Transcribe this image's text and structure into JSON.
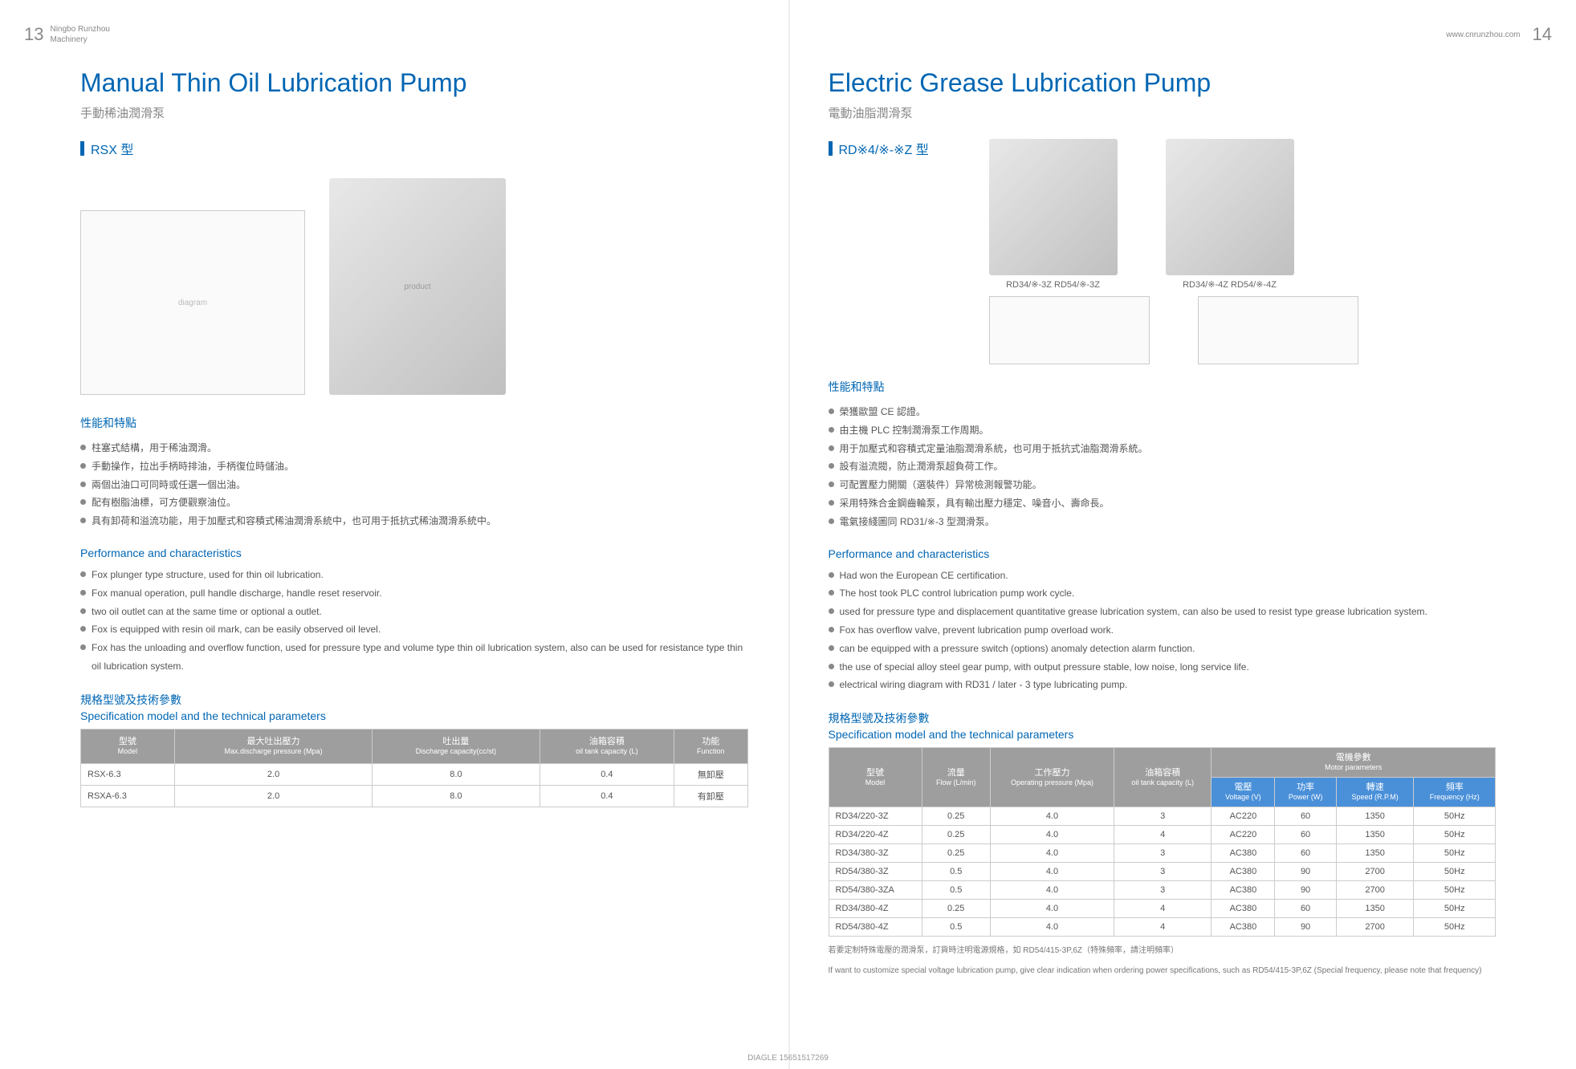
{
  "header": {
    "page_left": "13",
    "page_right": "14",
    "company_l1": "Ningbo Runzhou",
    "company_l2": "Machinery",
    "url": "www.cnrunzhou.com"
  },
  "left": {
    "title": "Manual Thin Oil Lubrication Pump",
    "subtitle": "手動稀油潤滑泵",
    "model": "RSX 型",
    "feat_cn_hdr": "性能和特點",
    "feat_cn": [
      "柱塞式結構，用于稀油潤滑。",
      "手動操作，拉出手柄時排油，手柄復位時儲油。",
      "兩個出油口可同時或任選一個出油。",
      "配有樹脂油標，可方便觀察油位。",
      "具有卸荷和溢流功能，用于加壓式和容積式稀油潤滑系統中，也可用于抵抗式稀油潤滑系統中。"
    ],
    "feat_en_hdr": "Performance and characteristics",
    "feat_en": [
      "Fox plunger type structure, used for thin oil lubrication.",
      "Fox manual operation, pull handle discharge, handle reset reservoir.",
      "two oil outlet can at the same time or optional a outlet.",
      "Fox is equipped with resin oil mark, can be easily observed oil level.",
      "Fox has the unloading and overflow function, used for pressure type and volume type thin oil lubrication system, also can be used for resistance type thin oil lubrication system."
    ],
    "spec_cn": "規格型號及技術參數",
    "spec_en": "Specification model and the technical parameters",
    "table": {
      "headers": [
        {
          "cn": "型號",
          "en": "Model"
        },
        {
          "cn": "最大吐出壓力",
          "en": "Max.discharge pressure (Mpa)"
        },
        {
          "cn": "吐出量",
          "en": "Discharge capacity(cc/st)"
        },
        {
          "cn": "油箱容積",
          "en": "oil tank capacity (L)"
        },
        {
          "cn": "功能",
          "en": "Function"
        }
      ],
      "rows": [
        [
          "RSX-6.3",
          "2.0",
          "8.0",
          "0.4",
          "無卸壓"
        ],
        [
          "RSXA-6.3",
          "2.0",
          "8.0",
          "0.4",
          "有卸壓"
        ]
      ]
    }
  },
  "right": {
    "title": "Electric Grease Lubrication Pump",
    "subtitle": "電動油脂潤滑泵",
    "model": "RD※4/※-※Z 型",
    "prod_labels": [
      "RD34/※-3Z   RD54/※-3Z",
      "RD34/※-4Z   RD54/※-4Z"
    ],
    "feat_cn_hdr": "性能和特點",
    "feat_cn": [
      "榮獲歐盟 CE 認證。",
      "由主機 PLC 控制潤滑泵工作周期。",
      "用于加壓式和容積式定量油脂潤滑系統，也可用于抵抗式油脂潤滑系統。",
      "設有溢流閥，防止潤滑泵超負荷工作。",
      "可配置壓力開關（選裝件）异常檢測報警功能。",
      "采用特殊合金鋼齒輪泵，具有輸出壓力穩定、噪音小、壽命長。",
      "電氣接綫圖同 RD31/※-3 型潤滑泵。"
    ],
    "feat_en_hdr": "Performance and characteristics",
    "feat_en": [
      "Had won the European CE certification.",
      "The host took PLC control lubrication pump work cycle.",
      "used for pressure type and displacement quantitative grease lubrication system, can also be used to resist type grease lubrication system.",
      "Fox has overflow valve, prevent lubrication pump overload work.",
      "can be equipped with a pressure switch (options) anomaly detection alarm function.",
      "the use of special alloy steel gear pump, with output pressure stable, low noise, long service life.",
      "electrical wiring diagram with RD31 / later - 3 type lubricating pump."
    ],
    "spec_cn": "規格型號及技術參數",
    "spec_en": "Specification model and the technical parameters",
    "table": {
      "top_headers": [
        {
          "cn": "型號",
          "en": "Model",
          "span": 1
        },
        {
          "cn": "流量",
          "en": "Flow (L/min)",
          "span": 1
        },
        {
          "cn": "工作壓力",
          "en": "Operating pressure (Mpa)",
          "span": 1
        },
        {
          "cn": "油箱容積",
          "en": "oil tank capacity (L)",
          "span": 1
        },
        {
          "cn": "電機參數",
          "en": "Motor parameters",
          "span": 4
        }
      ],
      "sub_headers": [
        {
          "cn": "電壓",
          "en": "Voltage (V)"
        },
        {
          "cn": "功率",
          "en": "Power (W)"
        },
        {
          "cn": "轉速",
          "en": "Speed (R.P.M)"
        },
        {
          "cn": "頻率",
          "en": "Frequency (Hz)"
        }
      ],
      "rows": [
        [
          "RD34/220-3Z",
          "0.25",
          "4.0",
          "3",
          "AC220",
          "60",
          "1350",
          "50Hz"
        ],
        [
          "RD34/220-4Z",
          "0.25",
          "4.0",
          "4",
          "AC220",
          "60",
          "1350",
          "50Hz"
        ],
        [
          "RD34/380-3Z",
          "0.25",
          "4.0",
          "3",
          "AC380",
          "60",
          "1350",
          "50Hz"
        ],
        [
          "RD54/380-3Z",
          "0.5",
          "4.0",
          "3",
          "AC380",
          "90",
          "2700",
          "50Hz"
        ],
        [
          "RD54/380-3ZA",
          "0.5",
          "4.0",
          "3",
          "AC380",
          "90",
          "2700",
          "50Hz"
        ],
        [
          "RD34/380-4Z",
          "0.25",
          "4.0",
          "4",
          "AC380",
          "60",
          "1350",
          "50Hz"
        ],
        [
          "RD54/380-4Z",
          "0.5",
          "4.0",
          "4",
          "AC380",
          "90",
          "2700",
          "50Hz"
        ]
      ]
    },
    "note_cn": "若要定制特殊電壓的潤滑泵，訂貨時注明電源規格，如 RD54/415-3P,6Z（特殊頻率，請注明頻率）",
    "note_en": "If want to customize special voltage lubrication pump, give clear indication when ordering power specifications, such as RD54/415-3P,6Z (Special frequency, please note that frequency)"
  },
  "footer": "DIAGLE 15651517269",
  "colors": {
    "blue": "#0066b3",
    "gray_th": "#9e9e9e",
    "blue_th": "#4a90d9"
  }
}
